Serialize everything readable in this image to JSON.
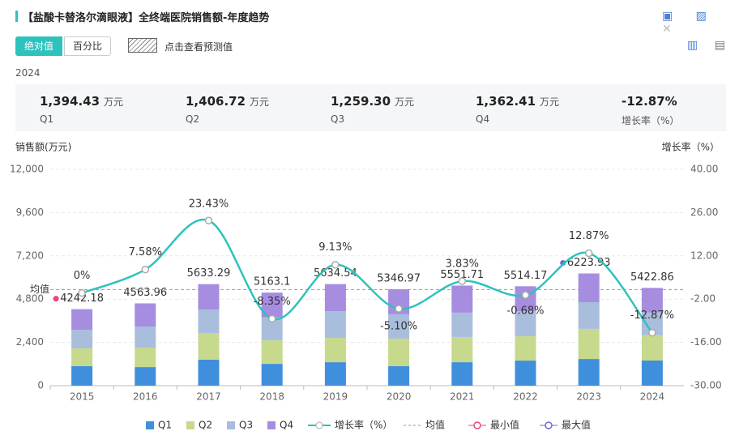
{
  "header": {
    "title": "【盐酸卡替洛尔滴眼液】全终端医院销售额-年度趋势"
  },
  "controls": {
    "absolute": "绝对值",
    "percent": "百分比",
    "forecast": "点击查看预测值"
  },
  "year": "2024",
  "summary": [
    {
      "value": "1,394.43",
      "unit": "万元",
      "label": "Q1"
    },
    {
      "value": "1,406.72",
      "unit": "万元",
      "label": "Q2"
    },
    {
      "value": "1,259.30",
      "unit": "万元",
      "label": "Q3"
    },
    {
      "value": "1,362.41",
      "unit": "万元",
      "label": "Q4"
    },
    {
      "value": "-12.87%",
      "label": "增长率（%）"
    }
  ],
  "chart_data": {
    "type": "bar",
    "stacked": true,
    "y_label": "销售额(万元)",
    "y2_label": "增长率（%）",
    "categories": [
      "2015",
      "2016",
      "2017",
      "2018",
      "2019",
      "2020",
      "2021",
      "2022",
      "2023",
      "2024"
    ],
    "series": [
      {
        "name": "Q1",
        "color": "#3f8fdc",
        "values": [
          1080,
          1030,
          1440,
          1210,
          1300,
          1080,
          1300,
          1390,
          1480,
          1394.43
        ]
      },
      {
        "name": "Q2",
        "color": "#c6d98c",
        "values": [
          990,
          1080,
          1480,
          1310,
          1350,
          1530,
          1400,
          1350,
          1670,
          1406.72
        ]
      },
      {
        "name": "Q3",
        "color": "#a9bedc",
        "values": [
          1030,
          1170,
          1300,
          1260,
          1480,
          1350,
          1350,
          1390,
          1480,
          1259.3
        ]
      },
      {
        "name": "Q4",
        "color": "#a68de0",
        "values": [
          1142.18,
          1283.96,
          1413.29,
          1383.1,
          1504.54,
          1386.97,
          1501.71,
          1384.17,
          1593.93,
          1362.41
        ]
      }
    ],
    "totals": [
      4242.18,
      4563.96,
      5633.29,
      5163.1,
      5634.54,
      5346.97,
      5551.71,
      5514.17,
      6223.93,
      5422.86
    ],
    "growth": {
      "name": "增长率（%）",
      "color": "#2ec2bd",
      "axis": "y2",
      "values": [
        0,
        7.58,
        23.43,
        -8.35,
        9.13,
        -5.1,
        3.83,
        -0.68,
        12.87,
        -12.87
      ],
      "value_labels": [
        "0%",
        "7.58%",
        "23.43%",
        "-8.35%",
        "9.13%",
        "-5.10%",
        "3.83%",
        "-0.68%",
        "12.87%",
        "-12.87%"
      ]
    },
    "average": {
      "name": "均值",
      "value": 5329.67
    },
    "min": {
      "name": "最小值",
      "color": "#e8457f"
    },
    "max": {
      "name": "最大值",
      "color": "#6a6ad8"
    },
    "ylim": [
      0,
      12000
    ],
    "yticks": [
      0,
      {
        "value": 2400,
        "label": "2,400"
      },
      {
        "value": 4800,
        "label": "4,800"
      },
      {
        "value": 7200,
        "label": "7,200"
      },
      {
        "value": 9600,
        "label": "9,600"
      },
      {
        "value": 12000,
        "label": "12,000"
      }
    ],
    "y2lim": [
      -30,
      40
    ],
    "y2ticks": [
      {
        "value": -30,
        "label": "-30.00"
      },
      {
        "value": -16,
        "label": "-16.00"
      },
      {
        "value": -2,
        "label": "-2.00"
      },
      {
        "value": 12,
        "label": "12.00"
      },
      {
        "value": 26,
        "label": "26.00"
      },
      {
        "value": 40,
        "label": "40.00"
      }
    ],
    "grid": true
  }
}
